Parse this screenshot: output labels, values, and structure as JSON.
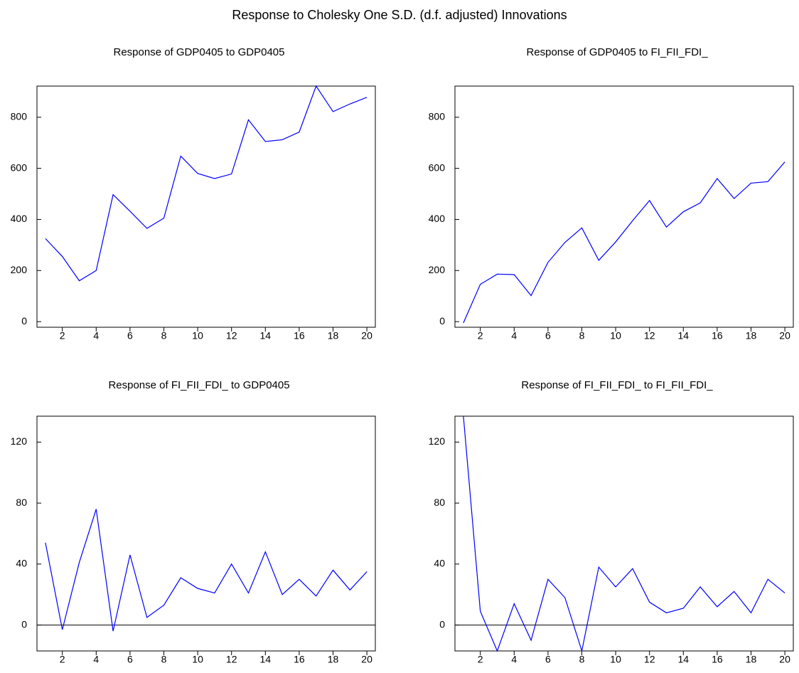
{
  "title": "Response to Cholesky One S.D. (d.f. adjusted) Innovations",
  "chart_data": [
    {
      "type": "line",
      "title": "Response of GDP0405 to GDP0405",
      "x": [
        1,
        2,
        3,
        4,
        5,
        6,
        7,
        8,
        9,
        10,
        11,
        12,
        13,
        14,
        15,
        16,
        17,
        18,
        19,
        20
      ],
      "series": [
        {
          "color": "#0000ff",
          "values": [
            325,
            255,
            160,
            200,
            497,
            432,
            365,
            405,
            648,
            580,
            560,
            578,
            790,
            705,
            712,
            742,
            922,
            822,
            852,
            878
          ]
        }
      ],
      "xlim": [
        0.5,
        20.5
      ],
      "ylim": [
        -22,
        922
      ],
      "xticks": [
        2,
        4,
        6,
        8,
        10,
        12,
        14,
        16,
        18,
        20
      ],
      "yticks": [
        0,
        200,
        400,
        600,
        800
      ],
      "zero_line": false
    },
    {
      "type": "line",
      "title": "Response of GDP0405 to FI_FII_FDI_",
      "x": [
        1,
        2,
        3,
        4,
        5,
        6,
        7,
        8,
        9,
        10,
        11,
        12,
        13,
        14,
        15,
        16,
        17,
        18,
        19,
        20
      ],
      "series": [
        {
          "color": "#0000ff",
          "values": [
            -5,
            146,
            186,
            184,
            102,
            232,
            310,
            367,
            240,
            312,
            395,
            474,
            370,
            430,
            465,
            560,
            482,
            542,
            548,
            625
          ]
        }
      ],
      "xlim": [
        0.5,
        20.5
      ],
      "ylim": [
        -22,
        922
      ],
      "xticks": [
        2,
        4,
        6,
        8,
        10,
        12,
        14,
        16,
        18,
        20
      ],
      "yticks": [
        0,
        200,
        400,
        600,
        800
      ],
      "zero_line": false
    },
    {
      "type": "line",
      "title": "Response of FI_FII_FDI_ to GDP0405",
      "x": [
        1,
        2,
        3,
        4,
        5,
        6,
        7,
        8,
        9,
        10,
        11,
        12,
        13,
        14,
        15,
        16,
        17,
        18,
        19,
        20
      ],
      "series": [
        {
          "color": "#0000ff",
          "values": [
            54,
            -3,
            41,
            76,
            -4,
            46,
            5,
            13,
            31,
            24,
            21,
            40,
            21,
            48,
            20,
            30,
            19,
            36,
            23,
            35
          ]
        }
      ],
      "xlim": [
        0.5,
        20.5
      ],
      "ylim": [
        -17,
        137
      ],
      "xticks": [
        2,
        4,
        6,
        8,
        10,
        12,
        14,
        16,
        18,
        20
      ],
      "yticks": [
        0,
        40,
        80,
        120
      ],
      "zero_line": true
    },
    {
      "type": "line",
      "title": "Response of FI_FII_FDI_ to FI_FII_FDI_",
      "x": [
        1,
        2,
        3,
        4,
        5,
        6,
        7,
        8,
        9,
        10,
        11,
        12,
        13,
        14,
        15,
        16,
        17,
        18,
        19,
        20
      ],
      "series": [
        {
          "color": "#0000ff",
          "values": [
            137,
            9,
            -17,
            14,
            -10,
            30,
            18,
            -17,
            38,
            25,
            37,
            15,
            8,
            11,
            25,
            12,
            22,
            8,
            30,
            21
          ]
        }
      ],
      "xlim": [
        0.5,
        20.5
      ],
      "ylim": [
        -17,
        137
      ],
      "xticks": [
        2,
        4,
        6,
        8,
        10,
        12,
        14,
        16,
        18,
        20
      ],
      "yticks": [
        0,
        40,
        80,
        120
      ],
      "zero_line": true
    }
  ]
}
